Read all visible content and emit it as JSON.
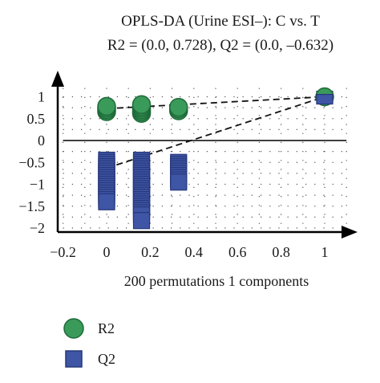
{
  "chart_data": {
    "type": "scatter",
    "title": "OPLS-DA (Urine ESI–): C vs. T",
    "subtitle": "R2 = (0.0, 0.728), Q2 = (0.0, –0.632)",
    "xlabel": "200 permutations 1 components",
    "ylabel": "",
    "xlim": [
      -0.2,
      1.0
    ],
    "ylim": [
      -2.0,
      1.0
    ],
    "x_ticks": [
      {
        "value": -0.2,
        "label": "−0.2"
      },
      {
        "value": 0,
        "label": "0"
      },
      {
        "value": 0.2,
        "label": "0.2"
      },
      {
        "value": 0.4,
        "label": "0.4"
      },
      {
        "value": 0.6,
        "label": "0.6"
      },
      {
        "value": 0.8,
        "label": "0.8"
      },
      {
        "value": 1,
        "label": "1"
      }
    ],
    "y_ticks": [
      {
        "value": 1,
        "label": "1"
      },
      {
        "value": 0.5,
        "label": "0.5"
      },
      {
        "value": 0,
        "label": "0"
      },
      {
        "value": -0.5,
        "label": "−0.5"
      },
      {
        "value": -1,
        "label": "−1"
      },
      {
        "value": -1.5,
        "label": "−1.5"
      },
      {
        "value": -2,
        "label": "−2"
      }
    ],
    "grid": "dotted",
    "legend_position": "bottom-left",
    "series": [
      {
        "name": "R2",
        "marker": "circle",
        "color": "#3a9a5a",
        "points": [
          {
            "x": 0,
            "y": 0.66
          },
          {
            "x": 0,
            "y": 0.7
          },
          {
            "x": 0,
            "y": 0.74
          },
          {
            "x": 0,
            "y": 0.78
          },
          {
            "x": 0.16,
            "y": 0.62
          },
          {
            "x": 0.16,
            "y": 0.66
          },
          {
            "x": 0.16,
            "y": 0.7
          },
          {
            "x": 0.16,
            "y": 0.74
          },
          {
            "x": 0.16,
            "y": 0.78
          },
          {
            "x": 0.16,
            "y": 0.82
          },
          {
            "x": 0.33,
            "y": 0.68
          },
          {
            "x": 0.33,
            "y": 0.72
          },
          {
            "x": 0.33,
            "y": 0.76
          },
          {
            "x": 1,
            "y": 1
          }
        ]
      },
      {
        "name": "Q2",
        "marker": "square",
        "color": "#3f55a5",
        "points": [
          {
            "x": 0,
            "y": -0.5
          },
          {
            "x": 0,
            "y": -1.2
          }
        ]
      }
    ],
    "q2_point": {
      "x": 1,
      "y": 0.98
    },
    "q2_columns": [
      {
        "x": 0,
        "y_top": -0.45,
        "y_bottom": -1.42
      },
      {
        "x": 0.16,
        "y_top": -0.45,
        "y_bottom": -1.72
      },
      {
        "x": 0.33,
        "y_top": -0.5,
        "y_bottom": -0.95
      }
    ],
    "q2_extra_points": [
      {
        "x": 0.16,
        "y": -1.83
      }
    ],
    "regression_lines": [
      {
        "series": "R2",
        "from": {
          "x": 0,
          "y": 0.728
        },
        "to": {
          "x": 1,
          "y": 1
        }
      },
      {
        "series": "Q2",
        "from": {
          "x": 0,
          "y": -0.632
        },
        "to": {
          "x": 1,
          "y": 1
        }
      }
    ]
  }
}
